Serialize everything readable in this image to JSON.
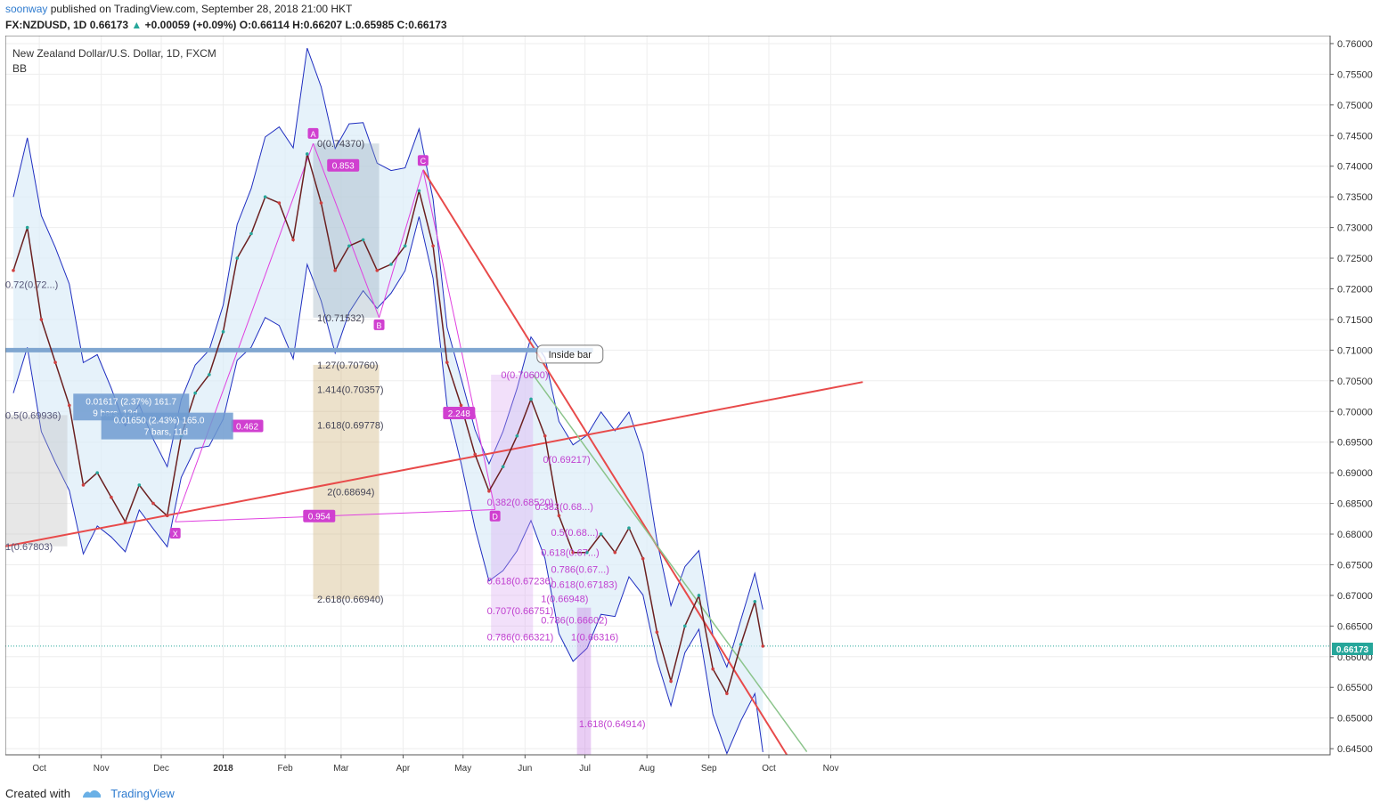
{
  "header": {
    "author": "soonway",
    "published": "published on TradingView.com, September 28, 2018 21:00 HKT",
    "symbol": "FX:NZDUSD, 1D",
    "last": "0.66173",
    "change": "+0.00059 (+0.09%)",
    "ohlc": "O:0.66114 H:0.66207 L:0.65985 C:0.66173"
  },
  "chart": {
    "title": "New Zealand Dollar/U.S. Dollar, 1D, FXCM",
    "indicator": "BB",
    "current_price_label": "0.66173"
  },
  "footer": {
    "created_with": "Created with",
    "brand": "TradingView"
  },
  "colors": {
    "bb_fill": "#dcecf8",
    "bb_line": "#1f2ec0",
    "trend": "#e84a4a",
    "fib_pink": "#e040e0",
    "price_up": "#26a69a",
    "accent": "#2e7bcf"
  },
  "chart_data": {
    "type": "line",
    "series": [
      {
        "x": [
          "2017-09-18",
          "2017-09-25",
          "2017-10-02",
          "2017-10-09",
          "2017-10-16",
          "2017-10-23",
          "2017-10-30",
          "2017-11-06",
          "2017-11-13",
          "2017-11-20",
          "2017-11-27",
          "2017-12-04",
          "2017-12-11",
          "2017-12-18",
          "2017-12-25",
          "2018-01-01",
          "2018-01-08",
          "2018-01-15",
          "2018-01-22",
          "2018-01-29",
          "2018-02-05",
          "2018-02-12",
          "2018-02-19",
          "2018-02-26",
          "2018-03-05",
          "2018-03-12",
          "2018-03-19",
          "2018-03-26",
          "2018-04-02",
          "2018-04-09",
          "2018-04-16",
          "2018-04-23",
          "2018-04-30",
          "2018-05-07",
          "2018-05-14",
          "2018-05-21",
          "2018-05-28",
          "2018-06-04",
          "2018-06-11",
          "2018-06-18",
          "2018-06-25",
          "2018-07-02",
          "2018-07-09",
          "2018-07-16",
          "2018-07-23",
          "2018-07-30",
          "2018-08-06",
          "2018-08-13",
          "2018-08-20",
          "2018-08-27",
          "2018-09-03",
          "2018-09-10",
          "2018-09-17",
          "2018-09-24",
          "2018-09-28"
        ],
        "values": [
          0.723,
          0.73,
          0.715,
          0.708,
          0.701,
          0.688,
          0.69,
          0.686,
          0.682,
          0.688,
          0.685,
          0.683,
          0.696,
          0.703,
          0.706,
          0.713,
          0.725,
          0.729,
          0.735,
          0.734,
          0.728,
          0.742,
          0.734,
          0.723,
          0.727,
          0.728,
          0.723,
          0.724,
          0.727,
          0.736,
          0.727,
          0.708,
          0.701,
          0.693,
          0.687,
          0.691,
          0.696,
          0.702,
          0.696,
          0.683,
          0.677,
          0.677,
          0.68,
          0.677,
          0.681,
          0.676,
          0.664,
          0.656,
          0.665,
          0.67,
          0.658,
          0.654,
          0.662,
          0.669,
          0.66173
        ]
      }
    ],
    "y_ticks": [
      "0.76000",
      "0.75500",
      "0.75000",
      "0.74500",
      "0.74000",
      "0.73500",
      "0.73000",
      "0.72500",
      "0.72000",
      "0.71500",
      "0.71000",
      "0.70500",
      "0.70000",
      "0.69500",
      "0.69000",
      "0.68500",
      "0.68000",
      "0.67500",
      "0.67000",
      "0.66500",
      "0.66000",
      "0.65500",
      "0.65000",
      "0.64500"
    ],
    "x_ticks": [
      "Oct",
      "Nov",
      "Dec",
      "2018",
      "Feb",
      "Mar",
      "Apr",
      "May",
      "Jun",
      "Jul",
      "Aug",
      "Sep",
      "Oct",
      "Nov"
    ],
    "ylim": [
      0.644,
      0.7613
    ],
    "grid": true,
    "annotations": {
      "fib_levels": [
        "0(0.74370)",
        "1(0.71532)",
        "1.27(0.70760)",
        "1.414(0.70357)",
        "1.618(0.69778)",
        "2(0.68694)",
        "2.618(0.66940)",
        "0(0.70600)",
        "0.382(0.68520)",
        "0.618(0.67236)",
        "0.707(0.66751)",
        "0.786(0.66321)",
        "0.5(0.69936)",
        "1(0.67803)",
        "0.72(0.72...)",
        "1.618(0.64914)",
        "1(0.66316)",
        "0.786(0.66602)",
        "1(0.66948)",
        "0.618(0.67183)",
        "0.786(0.67...)",
        "0.618(0.67...)",
        "0.5(0.68...)",
        "0.382(0.68...)",
        "0(0.69217)"
      ],
      "ratios": [
        "0.853",
        "0.462",
        "2.248",
        "0.954"
      ],
      "points": [
        "X",
        "A",
        "B",
        "C",
        "D"
      ],
      "measure_1": [
        "0.01617 (2.37%) 161.7",
        "9 bars, 13d"
      ],
      "measure_2": [
        "0.01650 (2.43%) 165.0",
        "7 bars, 11d"
      ],
      "inside_bar": "Inside bar"
    }
  }
}
